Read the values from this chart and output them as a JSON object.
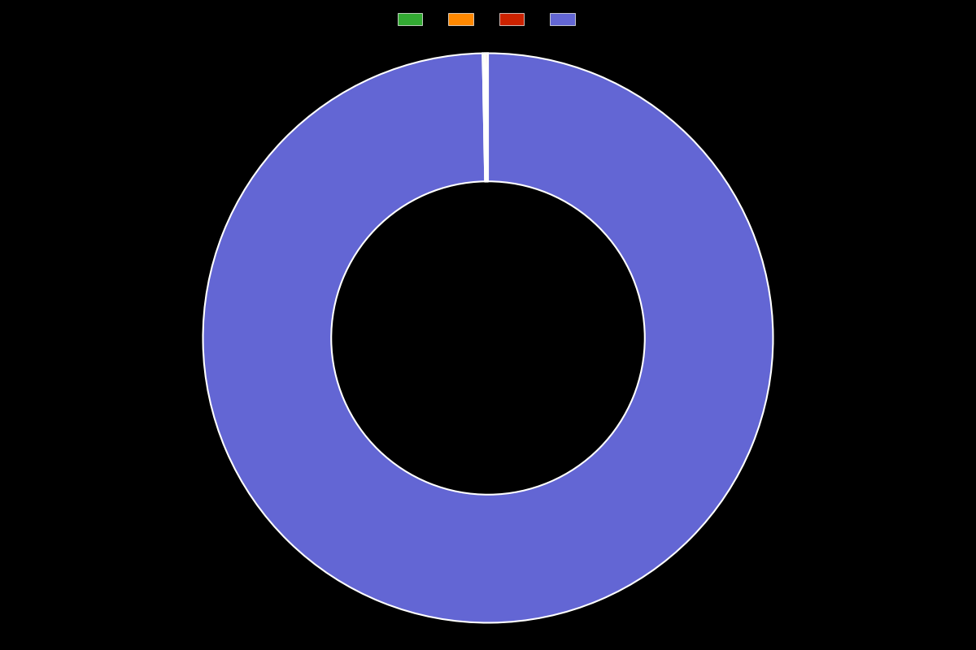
{
  "values": [
    99.7,
    0.1,
    0.1,
    0.1
  ],
  "colors": [
    "#6366d4",
    "#33aa33",
    "#ff8800",
    "#cc2200"
  ],
  "legend_colors": [
    "#33aa33",
    "#ff8800",
    "#cc2200",
    "#6366d4"
  ],
  "legend_labels": [
    "",
    "",
    "",
    ""
  ],
  "background_color": "#000000",
  "wedge_edge_color": "#ffffff",
  "wedge_linewidth": 1.5,
  "donut_width": 0.45,
  "figsize": [
    12.0,
    8.0
  ],
  "dpi": 100
}
